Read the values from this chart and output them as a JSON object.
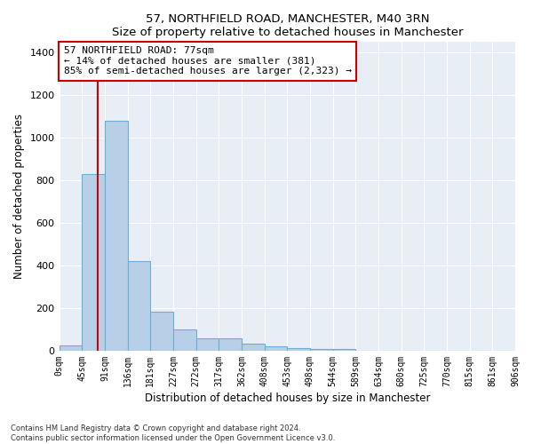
{
  "title": "57, NORTHFIELD ROAD, MANCHESTER, M40 3RN",
  "subtitle": "Size of property relative to detached houses in Manchester",
  "xlabel": "Distribution of detached houses by size in Manchester",
  "ylabel": "Number of detached properties",
  "bin_labels": [
    "0sqm",
    "45sqm",
    "91sqm",
    "136sqm",
    "181sqm",
    "227sqm",
    "272sqm",
    "317sqm",
    "362sqm",
    "408sqm",
    "453sqm",
    "498sqm",
    "544sqm",
    "589sqm",
    "634sqm",
    "680sqm",
    "725sqm",
    "770sqm",
    "815sqm",
    "861sqm",
    "906sqm"
  ],
  "bar_values": [
    25,
    830,
    1080,
    420,
    185,
    100,
    58,
    58,
    35,
    22,
    12,
    10,
    10,
    0,
    0,
    0,
    0,
    0,
    0,
    0
  ],
  "bar_color": "#b8cfe8",
  "bar_edge_color": "#6baed6",
  "vline_color": "#cc0000",
  "annotation_text": "57 NORTHFIELD ROAD: 77sqm\n← 14% of detached houses are smaller (381)\n85% of semi-detached houses are larger (2,323) →",
  "annotation_box_color": "white",
  "annotation_box_edge": "#cc0000",
  "ylim": [
    0,
    1450
  ],
  "yticks": [
    0,
    200,
    400,
    600,
    800,
    1000,
    1200,
    1400
  ],
  "bg_color": "#e8eef6",
  "grid_color": "#c8d4e0",
  "footer": "Contains HM Land Registry data © Crown copyright and database right 2024.\nContains public sector information licensed under the Open Government Licence v3.0."
}
